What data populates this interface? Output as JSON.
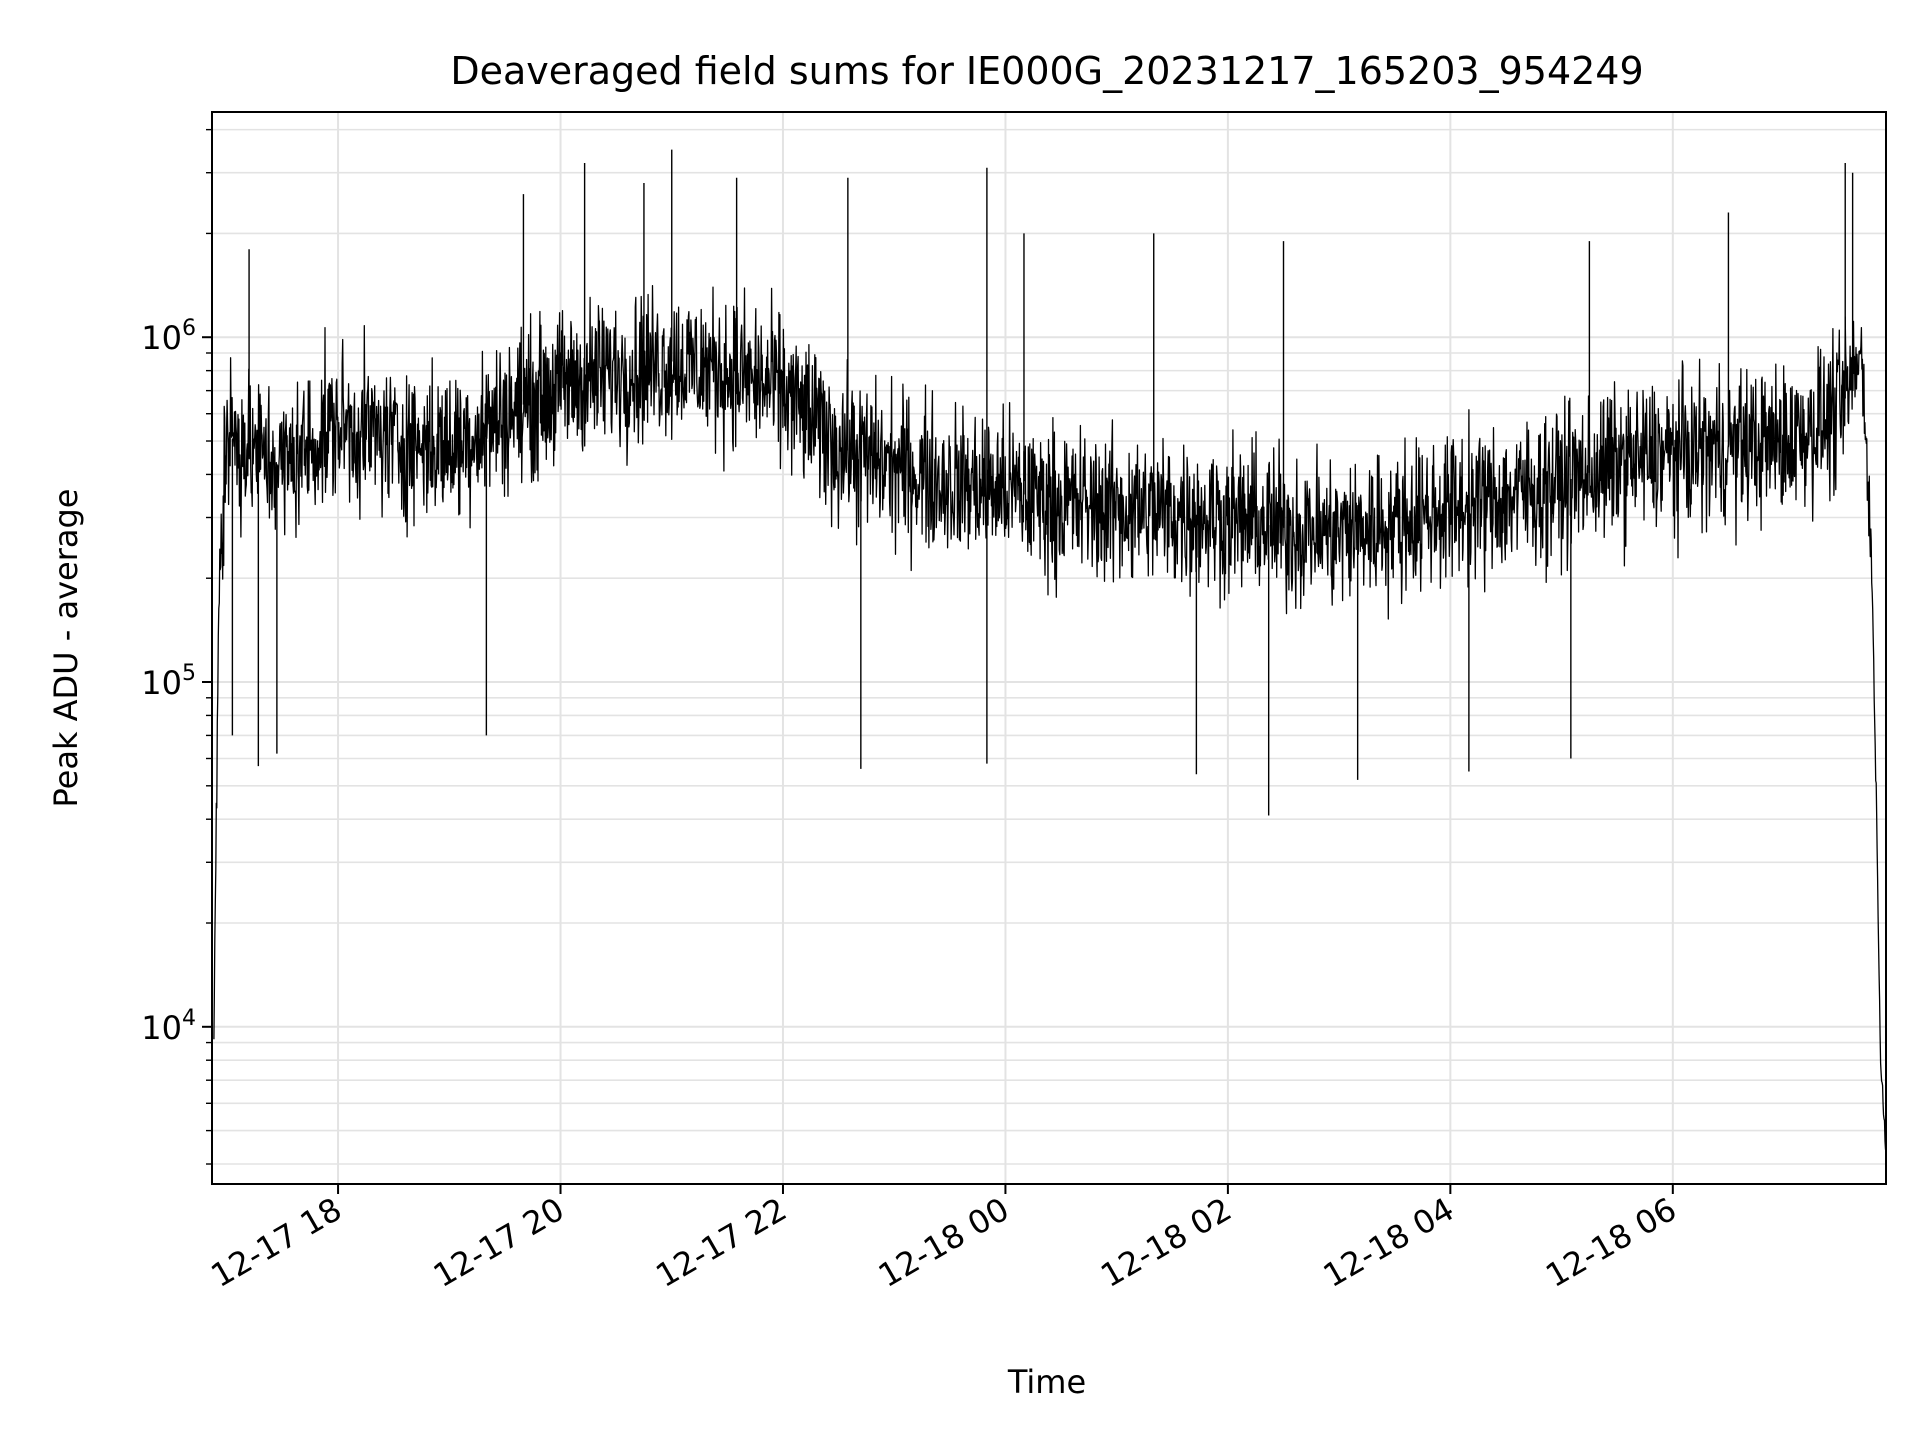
{
  "chart_data": {
    "type": "line",
    "title": "Deaveraged field sums for IE000G_20231217_165203_954249",
    "xlabel": "Time",
    "ylabel": "Peak ADU - average",
    "yscale": "log",
    "grid": true,
    "x_range": [
      "2023-12-17 16:52",
      "2023-12-18 07:55"
    ],
    "ylim": [
      3500,
      4500000
    ],
    "x_ticks": [
      {
        "t": "2023-12-17 18:00",
        "label": "12-17 18"
      },
      {
        "t": "2023-12-17 20:00",
        "label": "12-17 20"
      },
      {
        "t": "2023-12-17 22:00",
        "label": "12-17 22"
      },
      {
        "t": "2023-12-18 00:00",
        "label": "12-18 00"
      },
      {
        "t": "2023-12-18 02:00",
        "label": "12-18 02"
      },
      {
        "t": "2023-12-18 04:00",
        "label": "12-18 04"
      },
      {
        "t": "2023-12-18 06:00",
        "label": "12-18 06"
      }
    ],
    "y_ticks": [
      {
        "value": 10000,
        "base": "10",
        "exp": "4"
      },
      {
        "value": 100000,
        "base": "10",
        "exp": "5"
      },
      {
        "value": 1000000,
        "base": "10",
        "exp": "6"
      }
    ],
    "line_color": "#000000",
    "trend": [
      {
        "t": "2023-12-17 16:53",
        "y": 9500
      },
      {
        "t": "2023-12-17 16:56",
        "y": 220000
      },
      {
        "t": "2023-12-17 17:00",
        "y": 520000
      },
      {
        "t": "2023-12-17 17:30",
        "y": 420000
      },
      {
        "t": "2023-12-17 18:00",
        "y": 560000
      },
      {
        "t": "2023-12-17 18:30",
        "y": 500000
      },
      {
        "t": "2023-12-17 19:00",
        "y": 480000
      },
      {
        "t": "2023-12-17 19:30",
        "y": 600000
      },
      {
        "t": "2023-12-17 20:00",
        "y": 720000
      },
      {
        "t": "2023-12-17 20:30",
        "y": 800000
      },
      {
        "t": "2023-12-17 21:00",
        "y": 850000
      },
      {
        "t": "2023-12-17 21:30",
        "y": 800000
      },
      {
        "t": "2023-12-17 22:00",
        "y": 700000
      },
      {
        "t": "2023-12-17 22:30",
        "y": 480000
      },
      {
        "t": "2023-12-17 23:00",
        "y": 420000
      },
      {
        "t": "2023-12-17 23:30",
        "y": 380000
      },
      {
        "t": "2023-12-18 00:00",
        "y": 360000
      },
      {
        "t": "2023-12-18 00:30",
        "y": 330000
      },
      {
        "t": "2023-12-18 01:00",
        "y": 320000
      },
      {
        "t": "2023-12-18 01:30",
        "y": 310000
      },
      {
        "t": "2023-12-18 02:00",
        "y": 300000
      },
      {
        "t": "2023-12-18 02:30",
        "y": 280000
      },
      {
        "t": "2023-12-18 03:00",
        "y": 270000
      },
      {
        "t": "2023-12-18 03:30",
        "y": 290000
      },
      {
        "t": "2023-12-18 04:00",
        "y": 320000
      },
      {
        "t": "2023-12-18 04:30",
        "y": 340000
      },
      {
        "t": "2023-12-18 05:00",
        "y": 380000
      },
      {
        "t": "2023-12-18 05:30",
        "y": 430000
      },
      {
        "t": "2023-12-18 06:00",
        "y": 460000
      },
      {
        "t": "2023-12-18 06:30",
        "y": 480000
      },
      {
        "t": "2023-12-18 07:00",
        "y": 500000
      },
      {
        "t": "2023-12-18 07:30",
        "y": 600000
      },
      {
        "t": "2023-12-18 07:42",
        "y": 900000
      },
      {
        "t": "2023-12-18 07:47",
        "y": 250000
      },
      {
        "t": "2023-12-18 07:50",
        "y": 40000
      },
      {
        "t": "2023-12-18 07:52",
        "y": 8000
      },
      {
        "t": "2023-12-18 07:55",
        "y": 4500
      }
    ],
    "noise_amplitude_decades": 0.32,
    "peaks": [
      {
        "t": "2023-12-17 17:12",
        "y": 1800000
      },
      {
        "t": "2023-12-17 19:40",
        "y": 2600000
      },
      {
        "t": "2023-12-17 20:13",
        "y": 3200000
      },
      {
        "t": "2023-12-17 20:45",
        "y": 2800000
      },
      {
        "t": "2023-12-17 21:00",
        "y": 3500000
      },
      {
        "t": "2023-12-17 21:35",
        "y": 2900000
      },
      {
        "t": "2023-12-17 22:35",
        "y": 2900000
      },
      {
        "t": "2023-12-17 23:50",
        "y": 3100000
      },
      {
        "t": "2023-12-18 00:10",
        "y": 2000000
      },
      {
        "t": "2023-12-18 01:20",
        "y": 2000000
      },
      {
        "t": "2023-12-18 02:30",
        "y": 1900000
      },
      {
        "t": "2023-12-18 05:15",
        "y": 1900000
      },
      {
        "t": "2023-12-18 06:30",
        "y": 2300000
      },
      {
        "t": "2023-12-18 07:33",
        "y": 3200000
      },
      {
        "t": "2023-12-18 07:37",
        "y": 3000000
      }
    ],
    "dips": [
      {
        "t": "2023-12-17 17:03",
        "y": 70000
      },
      {
        "t": "2023-12-17 17:17",
        "y": 57000
      },
      {
        "t": "2023-12-17 17:27",
        "y": 62000
      },
      {
        "t": "2023-12-17 19:20",
        "y": 70000
      },
      {
        "t": "2023-12-17 22:42",
        "y": 56000
      },
      {
        "t": "2023-12-17 23:50",
        "y": 58000
      },
      {
        "t": "2023-12-18 01:43",
        "y": 54000
      },
      {
        "t": "2023-12-18 02:22",
        "y": 41000
      },
      {
        "t": "2023-12-18 03:10",
        "y": 52000
      },
      {
        "t": "2023-12-18 04:10",
        "y": 55000
      },
      {
        "t": "2023-12-18 05:05",
        "y": 60000
      }
    ]
  }
}
